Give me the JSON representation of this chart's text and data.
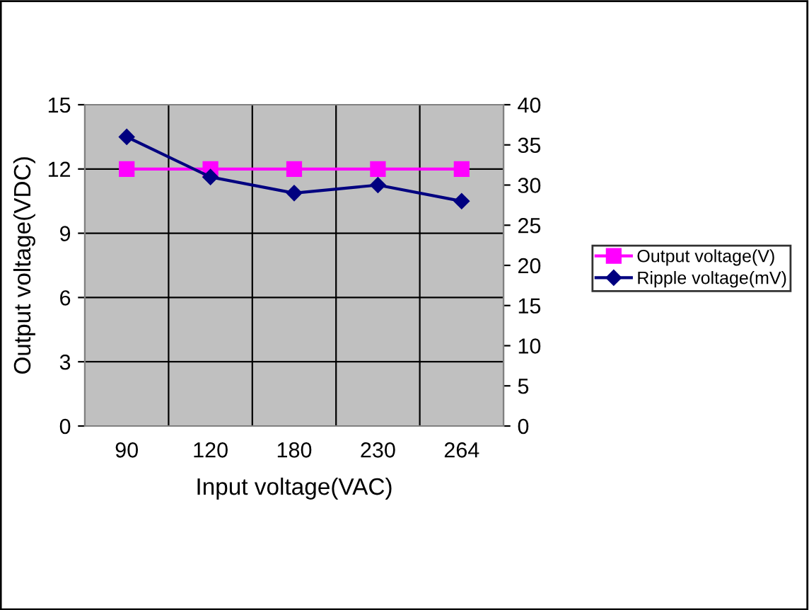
{
  "chart_data": {
    "type": "line",
    "xlabel": "Input voltage(VAC)",
    "ylabel": "Output voltage(VDC)",
    "categories": [
      "90",
      "120",
      "180",
      "230",
      "264"
    ],
    "series": [
      {
        "name": "Output voltage(V)",
        "color": "#ff00ff",
        "marker": "square",
        "values": [
          12,
          12,
          12,
          12,
          12
        ]
      },
      {
        "name": "Ripple voltage(mV)",
        "color": "#000080",
        "marker": "diamond",
        "axis": "y2",
        "values": [
          36,
          31,
          29,
          30,
          28
        ]
      }
    ],
    "ylim": [
      0,
      15
    ],
    "yticks": [
      0,
      3,
      6,
      9,
      12,
      15
    ],
    "y2lim": [
      0,
      40
    ],
    "y2ticks": [
      0,
      5,
      10,
      15,
      20,
      25,
      30,
      35,
      40
    ],
    "grid": true,
    "legend": "right",
    "line_style": "solid"
  }
}
